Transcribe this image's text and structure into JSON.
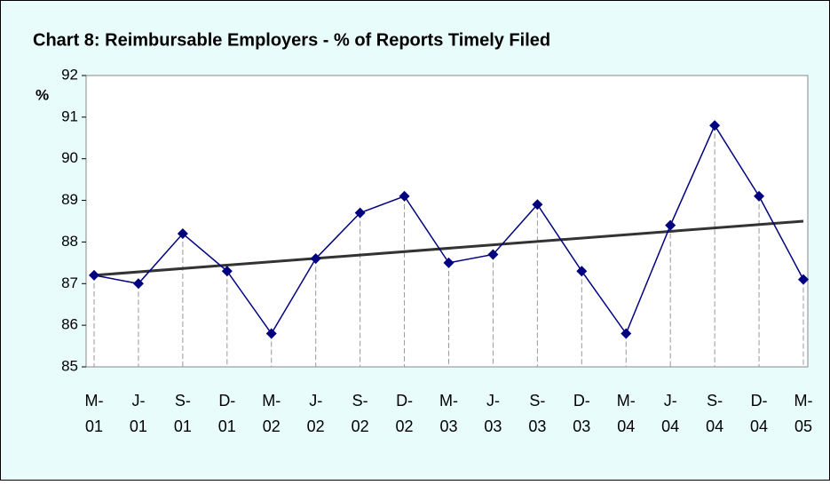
{
  "chart_data": {
    "type": "line",
    "title": "Chart 8: Reimbursable Employers - % of Reports Timely Filed",
    "y_label": "%",
    "categories": [
      [
        "M-",
        "01"
      ],
      [
        "J-",
        "01"
      ],
      [
        "S-",
        "01"
      ],
      [
        "D-",
        "01"
      ],
      [
        "M-",
        "02"
      ],
      [
        "J-",
        "02"
      ],
      [
        "S-",
        "02"
      ],
      [
        "D-",
        "02"
      ],
      [
        "M-",
        "03"
      ],
      [
        "J-",
        "03"
      ],
      [
        "S-",
        "03"
      ],
      [
        "D-",
        "03"
      ],
      [
        "M-",
        "04"
      ],
      [
        "J-",
        "04"
      ],
      [
        "S-",
        "04"
      ],
      [
        "D-",
        "04"
      ],
      [
        "M-",
        "05"
      ]
    ],
    "values": [
      87.2,
      87.0,
      88.2,
      87.3,
      85.8,
      87.6,
      88.7,
      89.1,
      87.5,
      87.7,
      88.9,
      87.3,
      85.8,
      88.4,
      90.8,
      89.1,
      87.1
    ],
    "color": "#000080",
    "trendline": {
      "values": [
        87.2,
        88.5
      ],
      "color": "#333333"
    },
    "drop_lines": true,
    "ylim": [
      85,
      92
    ],
    "yticks": [
      85,
      86,
      87,
      88,
      89,
      90,
      91,
      92
    ]
  }
}
